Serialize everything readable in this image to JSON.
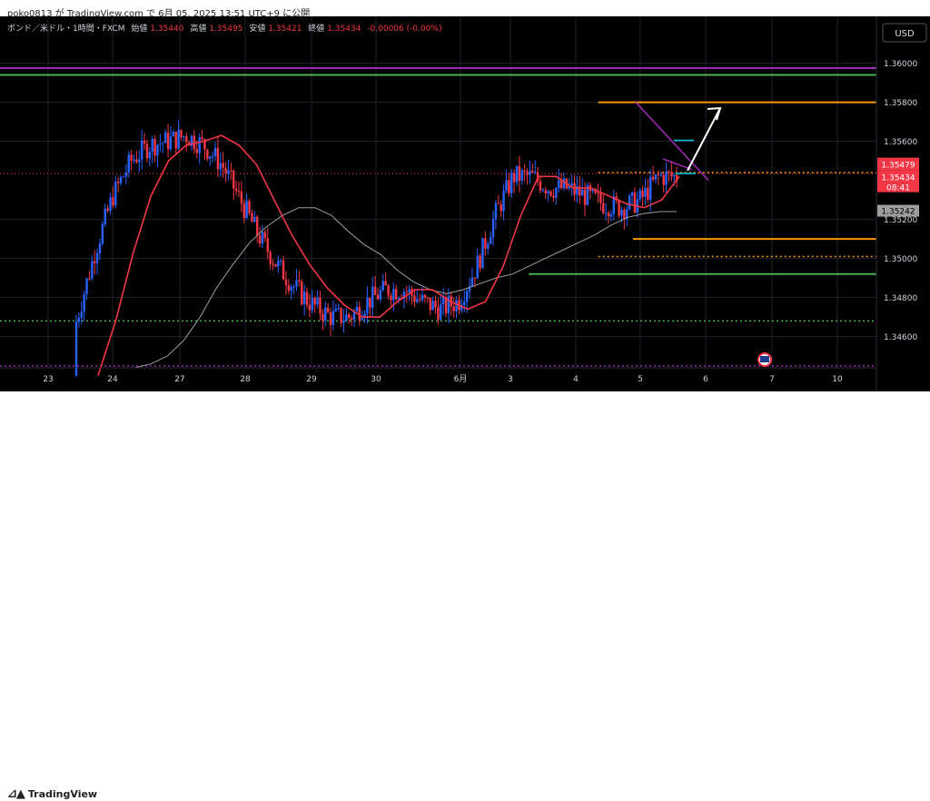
{
  "header": {
    "author_line": "poko0813 が TradingView.com で 6月 05, 2025 13:51 UTC+9 に公開"
  },
  "legend": {
    "symbol": "ポンド／米ドル・1時間・FXCM",
    "open_label": "始値",
    "open": "1.35440",
    "high_label": "高値",
    "high": "1.35495",
    "low_label": "安値",
    "low": "1.35421",
    "close_label": "終値",
    "close": "1.35434",
    "change": "-0.00006 (-0.00%)"
  },
  "currency_button": "USD",
  "footer": {
    "brand": "TradingView"
  },
  "colors": {
    "background": "#000000",
    "up_candle": "#2962ff",
    "down_candle": "#f23645",
    "ma_fast": "#f23645",
    "ma_slow": "#9e9e9e",
    "orange": "#ff9800",
    "green": "#4caf50",
    "purple": "#9c27b0",
    "cyan": "#00bcd4",
    "arrow": "#ffffff"
  },
  "chart_data": {
    "type": "candlestick",
    "title": "ポンド／米ドル・1時間・FXCM",
    "ylim": [
      1.3444,
      1.3624
    ],
    "y_ticks": [
      {
        "value": 1.36,
        "label": "1.36000"
      },
      {
        "value": 1.358,
        "label": "1.35800"
      },
      {
        "value": 1.356,
        "label": "1.35600"
      },
      {
        "value": 1.352,
        "label": "1.35200"
      },
      {
        "value": 1.35,
        "label": "1.35000"
      },
      {
        "value": 1.348,
        "label": "1.34800"
      },
      {
        "value": 1.346,
        "label": "1.34600"
      }
    ],
    "x_ticks": [
      "23",
      "24",
      "27",
      "28",
      "29",
      "30",
      "6月",
      "3",
      "4",
      "5",
      "6",
      "7",
      "10"
    ],
    "price_labels": [
      {
        "value": 1.35479,
        "label": "1.35479",
        "kind": "bid"
      },
      {
        "value": 1.35434,
        "label": "1.35434",
        "kind": "last"
      },
      {
        "value": 1.35434,
        "label": "08:41",
        "kind": "countdown"
      },
      {
        "value": 1.35242,
        "label": "1.35242",
        "kind": "ma"
      }
    ],
    "horizontal_lines": [
      {
        "value": 1.35975,
        "color": "purple",
        "style": "solid"
      },
      {
        "value": 1.3594,
        "color": "green",
        "style": "solid"
      },
      {
        "value": 1.358,
        "color": "orange",
        "style": "solid",
        "from_index": 0.68
      },
      {
        "value": 1.3544,
        "color": "orange",
        "style": "dotted",
        "from_index": 0.68
      },
      {
        "value": 1.351,
        "color": "orange",
        "style": "solid",
        "from_index": 0.72
      },
      {
        "value": 1.3501,
        "color": "orange",
        "style": "dotted",
        "from_index": 0.68
      },
      {
        "value": 1.3492,
        "color": "green",
        "style": "solid",
        "from_index": 0.6
      },
      {
        "value": 1.3468,
        "color": "green",
        "style": "dotted"
      },
      {
        "value": 1.3445,
        "color": "purple",
        "style": "dotted"
      }
    ],
    "ma_fast": [
      1.344,
      1.3468,
      1.3503,
      1.3532,
      1.355,
      1.3558,
      1.356,
      1.3563,
      1.3558,
      1.3548,
      1.353,
      1.3512,
      1.3497,
      1.3485,
      1.3476,
      1.347,
      1.347,
      1.3478,
      1.3484,
      1.3484,
      1.3478,
      1.3474,
      1.3478,
      1.3496,
      1.3522,
      1.3542,
      1.3542,
      1.3536,
      1.3536,
      1.3532,
      1.3528,
      1.3526,
      1.353,
      1.3542
    ],
    "ma_slow": [
      1.3444,
      1.3446,
      1.345,
      1.3458,
      1.347,
      1.3485,
      1.3497,
      1.3508,
      1.3516,
      1.3522,
      1.3526,
      1.3526,
      1.3522,
      1.3514,
      1.3507,
      1.3502,
      1.3494,
      1.3488,
      1.3484,
      1.3482,
      1.3484,
      1.3487,
      1.349,
      1.3492,
      1.3496,
      1.35,
      1.3504,
      1.3508,
      1.3512,
      1.3517,
      1.3521,
      1.3523,
      1.3524,
      1.3524
    ]
  }
}
